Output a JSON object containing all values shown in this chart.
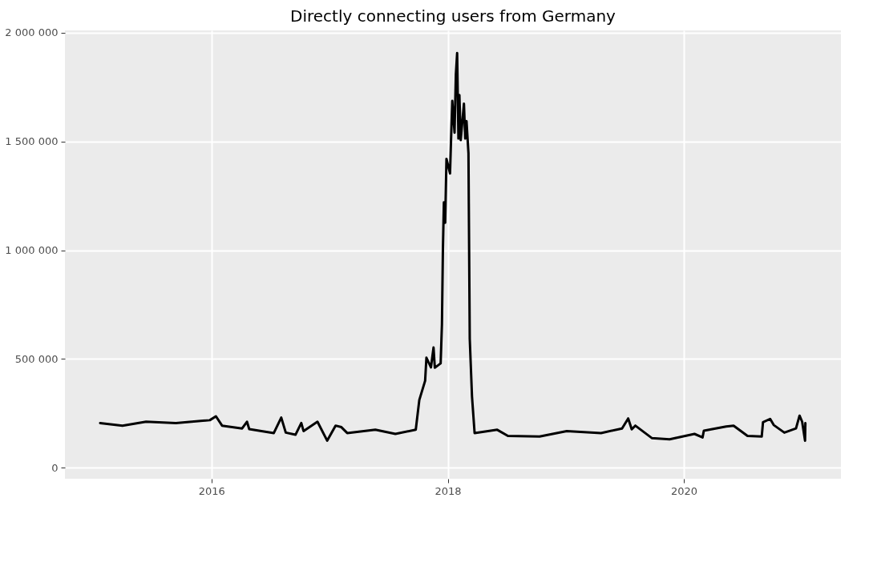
{
  "chart_data": {
    "type": "line",
    "title": "Directly connecting users from Germany",
    "x": [
      "2015-01-22",
      "2015-04-01",
      "2015-06-13",
      "2015-09-13",
      "2015-12-27",
      "2016-01-15",
      "2016-02-03",
      "2016-04-05",
      "2016-04-20",
      "2016-04-27",
      "2016-07-12",
      "2016-08-04",
      "2016-08-18",
      "2016-09-17",
      "2016-10-05",
      "2016-10-12",
      "2016-11-24",
      "2016-12-24",
      "2017-01-19",
      "2017-02-06",
      "2017-02-24",
      "2017-05-22",
      "2017-07-23",
      "2017-09-24",
      "2017-10-05",
      "2017-10-23",
      "2017-10-27",
      "2017-11-10",
      "2017-11-18",
      "2017-11-22",
      "2017-12-10",
      "2017-12-14",
      "2017-12-17",
      "2017-12-20",
      "2017-12-24",
      "2017-12-28",
      "2018-01-08",
      "2018-01-11",
      "2018-01-15",
      "2018-01-22",
      "2018-01-26",
      "2018-01-30",
      "2018-02-03",
      "2018-02-06",
      "2018-02-10",
      "2018-02-20",
      "2018-02-24",
      "2018-02-28",
      "2018-03-06",
      "2018-03-10",
      "2018-03-17",
      "2018-03-25",
      "2018-06-03",
      "2018-07-06",
      "2018-10-12",
      "2019-01-04",
      "2019-04-20",
      "2019-06-24",
      "2019-07-13",
      "2019-07-24",
      "2019-08-04",
      "2019-09-24",
      "2019-11-18",
      "2020-02-03",
      "2020-02-28",
      "2020-03-03",
      "2020-05-11",
      "2020-06-03",
      "2020-07-16",
      "2020-08-29",
      "2020-09-02",
      "2020-09-24",
      "2020-10-05",
      "2020-11-07",
      "2020-12-13",
      "2020-12-24",
      "2021-01-01",
      "2021-01-10",
      "2021-01-11"
    ],
    "series": [
      {
        "color": "#000000",
        "values": [
          206000,
          194000,
          212000,
          206000,
          219000,
          237000,
          194000,
          181000,
          212000,
          178000,
          160000,
          231000,
          162000,
          152000,
          206000,
          169000,
          212000,
          125000,
          194000,
          187000,
          160000,
          175000,
          156000,
          175000,
          312000,
          400000,
          506000,
          462000,
          553000,
          460000,
          480000,
          660000,
          1006000,
          1220000,
          1126000,
          1420000,
          1353000,
          1500000,
          1686000,
          1540000,
          1806000,
          1906000,
          1513000,
          1713000,
          1506000,
          1673000,
          1513000,
          1593000,
          1446000,
          593000,
          327000,
          160000,
          175000,
          147000,
          144000,
          169000,
          160000,
          181000,
          227000,
          177000,
          194000,
          137000,
          131000,
          156000,
          140000,
          171000,
          190000,
          194000,
          147000,
          144000,
          210000,
          225000,
          197000,
          162000,
          181000,
          240000,
          212000,
          125000,
          206000
        ]
      }
    ],
    "xlim": [
      "2014-10-05",
      "2021-05-01"
    ],
    "xticks": [
      "2016",
      "2018",
      "2020"
    ],
    "ylim": [
      -50000,
      2010000
    ],
    "yticks": [
      {
        "value": 0,
        "label": "0"
      },
      {
        "value": 500000,
        "label": "500 000"
      },
      {
        "value": 1000000,
        "label": "1 000 000"
      },
      {
        "value": 1500000,
        "label": "1 500 000"
      },
      {
        "value": 2000000,
        "label": "2 000 000"
      }
    ],
    "grid": true,
    "marker": "none",
    "line_style": "solid"
  }
}
